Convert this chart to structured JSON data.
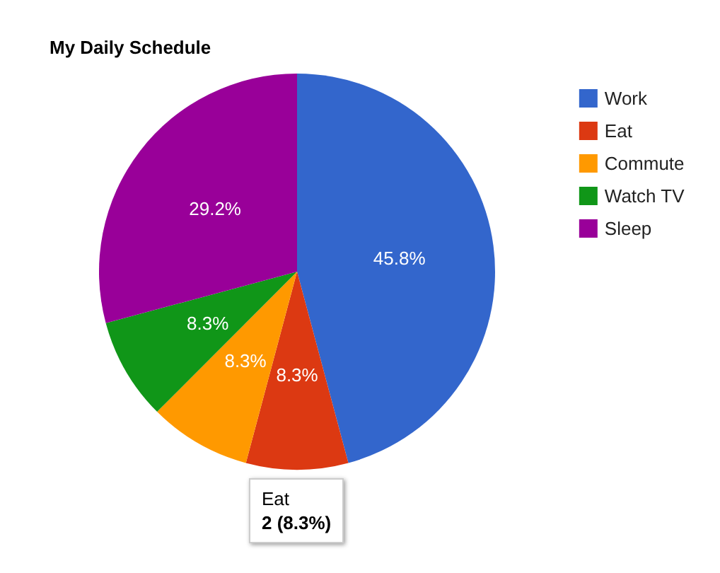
{
  "chart_data": {
    "type": "pie",
    "title": "My Daily Schedule",
    "categories": [
      "Work",
      "Eat",
      "Commute",
      "Watch TV",
      "Sleep"
    ],
    "values": [
      45.83,
      8.33,
      8.33,
      8.33,
      29.18
    ],
    "colors": [
      "#3366cc",
      "#dc3912",
      "#ff9900",
      "#109618",
      "#990099"
    ],
    "value_labels": [
      "45.8%",
      "8.3%",
      "8.3%",
      "8.3%",
      "29.2%"
    ],
    "legend": "top right",
    "annotations": [
      "Eat",
      "2 (8.3%)"
    ]
  }
}
